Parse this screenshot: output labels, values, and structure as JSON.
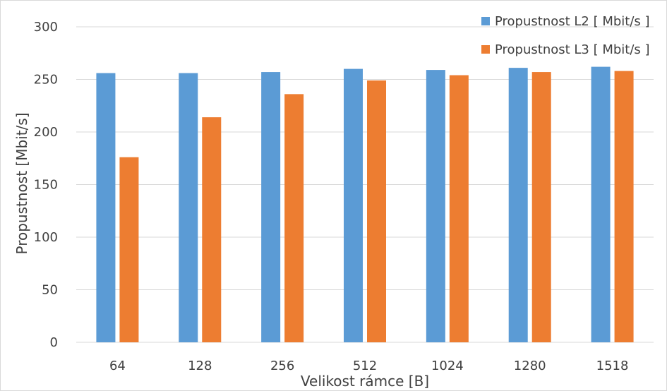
{
  "chart_data": {
    "type": "bar",
    "title": "",
    "xlabel": "Velikost rámce [B]",
    "ylabel": "Propustnost [Mbit/s]",
    "categories": [
      "64",
      "128",
      "256",
      "512",
      "1024",
      "1280",
      "1518"
    ],
    "series": [
      {
        "name": "Propustnost L2 [ Mbit/s ]",
        "color": "#5b9bd5",
        "values": [
          256,
          256,
          257,
          260,
          259,
          261,
          262
        ]
      },
      {
        "name": "Propustnost L3 [ Mbit/s ]",
        "color": "#ed7d31",
        "values": [
          176,
          214,
          236,
          249,
          254,
          257,
          258
        ]
      }
    ],
    "ylim": [
      0,
      300
    ],
    "yticks": [
      0,
      50,
      100,
      150,
      200,
      250,
      300
    ],
    "grid": true,
    "legend_position": "top-right"
  }
}
